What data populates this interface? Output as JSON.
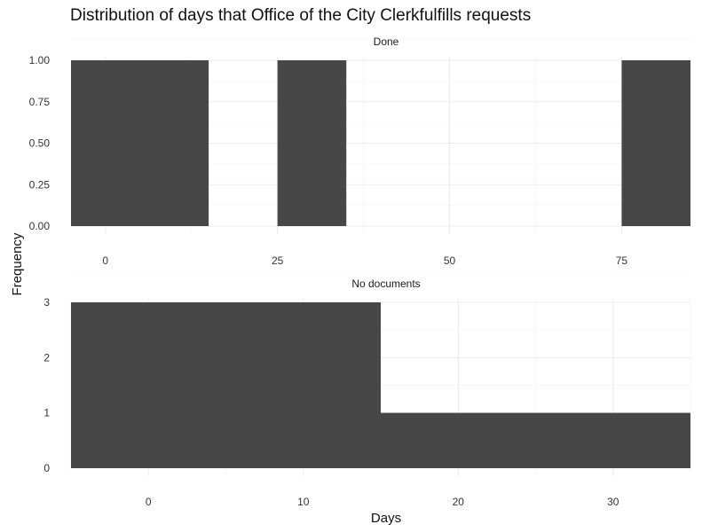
{
  "chart_data": {
    "type": "bar",
    "title": "Distribution of days that Office of the City Clerkfulfills requests",
    "xlabel": "Days",
    "ylabel": "Frequency",
    "bar_color": "#474747",
    "grid": true,
    "panels": [
      {
        "name": "Done",
        "xlim": [
          -5,
          85
        ],
        "ylim": [
          0,
          1
        ],
        "x_ticks": [
          0,
          25,
          50,
          75
        ],
        "y_ticks": [
          0,
          0.25,
          0.5,
          0.75,
          1
        ],
        "y_tick_labels": [
          "0.00",
          "0.25",
          "0.50",
          "0.75",
          "1.00"
        ],
        "bins": [
          {
            "x_start": -5,
            "x_end": 15,
            "value": 1
          },
          {
            "x_start": 25,
            "x_end": 35,
            "value": 1
          },
          {
            "x_start": 75,
            "x_end": 85,
            "value": 1
          }
        ]
      },
      {
        "name": "No documents",
        "xlim": [
          -5,
          35
        ],
        "ylim": [
          0,
          3
        ],
        "x_ticks": [
          0,
          10,
          20,
          30
        ],
        "y_ticks": [
          0,
          1,
          2,
          3
        ],
        "y_tick_labels": [
          "0",
          "1",
          "2",
          "3"
        ],
        "bins": [
          {
            "x_start": -5,
            "x_end": 15,
            "value": 3
          },
          {
            "x_start": 15,
            "x_end": 35,
            "value": 1
          }
        ]
      }
    ]
  }
}
